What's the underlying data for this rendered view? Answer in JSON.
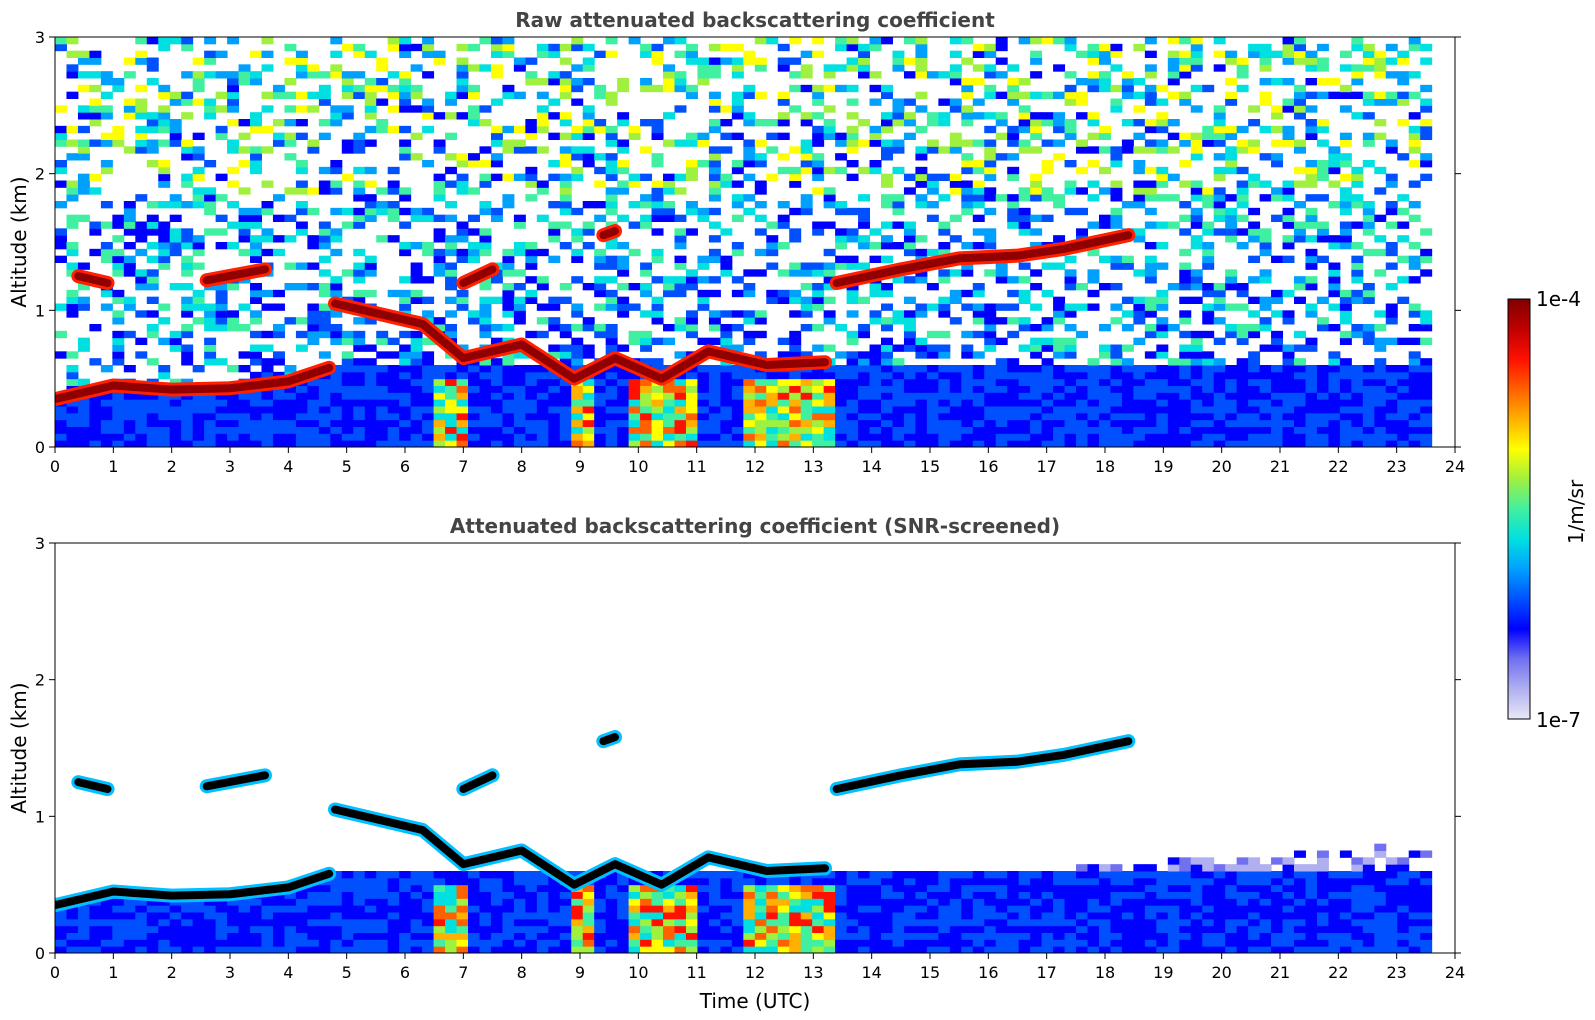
{
  "chart_data": [
    {
      "type": "heatmap",
      "title": "Raw attenuated backscattering coefficient",
      "xlabel": "",
      "ylabel": "Altitude (km)",
      "xlim": [
        0,
        24
      ],
      "ylim": [
        0,
        3
      ],
      "xticks": [
        "0",
        "1",
        "2",
        "3",
        "4",
        "5",
        "6",
        "7",
        "8",
        "9",
        "10",
        "11",
        "12",
        "13",
        "14",
        "15",
        "16",
        "17",
        "18",
        "19",
        "20",
        "21",
        "22",
        "23",
        "24"
      ],
      "yticks": [
        "0",
        "1",
        "2",
        "3"
      ],
      "data_end_time": 23.6,
      "layers": [
        {
          "t": [
            0.0,
            1.0,
            2.0,
            3.0,
            4.0,
            4.7
          ],
          "alt": [
            0.35,
            0.45,
            0.42,
            0.43,
            0.48,
            0.58
          ]
        },
        {
          "t": [
            4.8,
            5.5,
            6.3,
            7.0,
            8.0,
            8.9,
            9.6,
            10.4,
            11.2,
            12.2,
            13.2
          ],
          "alt": [
            1.05,
            0.98,
            0.9,
            0.65,
            0.75,
            0.5,
            0.65,
            0.5,
            0.7,
            0.6,
            0.62
          ]
        },
        {
          "t": [
            13.4,
            14.5,
            15.5,
            16.5,
            17.3,
            18.4
          ],
          "alt": [
            1.2,
            1.3,
            1.38,
            1.4,
            1.45,
            1.55
          ]
        },
        {
          "t": [
            0.4,
            0.9
          ],
          "alt": [
            1.25,
            1.2
          ]
        },
        {
          "t": [
            2.6,
            3.6
          ],
          "alt": [
            1.22,
            1.3
          ]
        },
        {
          "t": [
            7.0,
            7.5
          ],
          "alt": [
            1.2,
            1.3
          ]
        },
        {
          "t": [
            9.4,
            9.6
          ],
          "alt": [
            1.55,
            1.58
          ]
        }
      ]
    },
    {
      "type": "heatmap",
      "title": "Attenuated backscattering coefficient (SNR-screened)",
      "xlabel": "Time (UTC)",
      "ylabel": "Altitude (km)",
      "xlim": [
        0,
        24
      ],
      "ylim": [
        0,
        3
      ],
      "xticks": [
        "0",
        "1",
        "2",
        "3",
        "4",
        "5",
        "6",
        "7",
        "8",
        "9",
        "10",
        "11",
        "12",
        "13",
        "14",
        "15",
        "16",
        "17",
        "18",
        "19",
        "20",
        "21",
        "22",
        "23",
        "24"
      ],
      "yticks": [
        "0",
        "1",
        "2",
        "3"
      ],
      "data_end_time": 23.6
    }
  ],
  "colorbar": {
    "label": "1/m/sr",
    "max_label": "1e-4",
    "min_label": "1e-7",
    "range": [
      1e-07,
      0.0001
    ],
    "scale": "log",
    "colormap": [
      "#e8e8f8",
      "#b0b0f0",
      "#7070f0",
      "#0000ff",
      "#0050ff",
      "#00a0ff",
      "#00e0e0",
      "#40f0a0",
      "#a0f040",
      "#ffff00",
      "#ffb000",
      "#ff6000",
      "#ff1000",
      "#c00000",
      "#800000"
    ]
  }
}
